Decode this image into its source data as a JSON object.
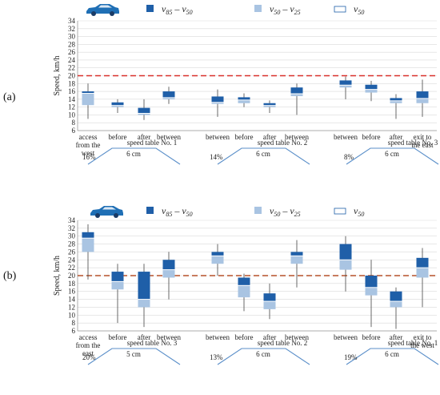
{
  "chart_data": [
    {
      "type": "box",
      "panel_label": "(a)",
      "ylabel": "Speed, km/h",
      "ylim": [
        6,
        34
      ],
      "yticks": [
        6,
        8,
        10,
        12,
        14,
        16,
        18,
        20,
        22,
        24,
        26,
        28,
        30,
        32,
        34
      ],
      "reference_line": 20,
      "legend": [
        {
          "sym": "v",
          "sub_a": "85",
          "sub_b": "50"
        },
        {
          "sym": "v",
          "sub_a": "50",
          "sub_b": "25"
        },
        {
          "sym": "v",
          "sub_a": "50",
          "sub_b": ""
        }
      ],
      "colors": {
        "upper": "#1f5fa8",
        "lower": "#a9c4e2",
        "whisker": "#444444",
        "refline": "#d9302a",
        "car": "#1f6fb5",
        "ramp": "#5b8fc9"
      },
      "categories": [
        "access\nfrom the\nwest",
        "before",
        "after",
        "between",
        "",
        "between",
        "before",
        "after",
        "between",
        "",
        "between",
        "before",
        "after",
        "exit to\nthe east"
      ],
      "boxes": [
        {
          "min": 9.0,
          "q1": 12.5,
          "median": 15.5,
          "q3": 16.0,
          "max": 18.0
        },
        {
          "min": 10.5,
          "q1": 12.0,
          "median": 12.4,
          "q3": 13.2,
          "max": 14.0
        },
        {
          "min": 8.7,
          "q1": 10.0,
          "median": 10.4,
          "q3": 11.8,
          "max": 14.0
        },
        {
          "min": 12.8,
          "q1": 14.0,
          "median": 14.4,
          "q3": 16.0,
          "max": 17.2
        },
        null,
        {
          "min": 9.5,
          "q1": 12.8,
          "median": 13.2,
          "q3": 14.7,
          "max": 16.5
        },
        {
          "min": 12.0,
          "q1": 13.0,
          "median": 13.8,
          "q3": 14.5,
          "max": 15.5
        },
        {
          "min": 10.5,
          "q1": 12.0,
          "median": 12.4,
          "q3": 13.0,
          "max": 13.7
        },
        {
          "min": 10.0,
          "q1": 14.8,
          "median": 15.4,
          "q3": 17.0,
          "max": 18.0
        },
        null,
        {
          "min": 14.0,
          "q1": 17.0,
          "median": 17.6,
          "q3": 18.8,
          "max": 19.8
        },
        {
          "min": 13.5,
          "q1": 15.7,
          "median": 16.5,
          "q3": 17.7,
          "max": 18.7
        },
        {
          "min": 9.0,
          "q1": 13.0,
          "median": 13.6,
          "q3": 14.3,
          "max": 15.3
        },
        {
          "min": 9.5,
          "q1": 13.0,
          "median": 14.2,
          "q3": 16.0,
          "max": 19.0
        }
      ],
      "speed_tables": [
        {
          "label": "speed table No.  1",
          "percent": "16%",
          "width": "6 cm"
        },
        {
          "label": "speed table No.  2",
          "percent": "14%",
          "width": "6 cm"
        },
        {
          "label": "speed table No. 3",
          "percent": "8%",
          "width": "6 cm"
        }
      ]
    },
    {
      "type": "box",
      "panel_label": "(b)",
      "ylabel": "Speed, km/h",
      "ylim": [
        6,
        34
      ],
      "yticks": [
        6,
        8,
        10,
        12,
        14,
        16,
        18,
        20,
        22,
        24,
        26,
        28,
        30,
        32,
        34
      ],
      "reference_line": 20,
      "legend": [
        {
          "sym": "v",
          "sub_a": "85",
          "sub_b": "50"
        },
        {
          "sym": "v",
          "sub_a": "50",
          "sub_b": "25"
        },
        {
          "sym": "v",
          "sub_a": "50",
          "sub_b": ""
        }
      ],
      "colors": {
        "upper": "#1f5fa8",
        "lower": "#a9c4e2",
        "whisker": "#444444",
        "refline": "#b5512a",
        "car": "#1f6fb5",
        "ramp": "#5b8fc9"
      },
      "categories": [
        "access\nfrom the\neast",
        "before",
        "after",
        "between",
        "",
        "between",
        "before",
        "after",
        "between",
        "",
        "between",
        "before",
        "after",
        "exit to\nthe west"
      ],
      "boxes": [
        {
          "min": 19.0,
          "q1": 26.0,
          "median": 29.5,
          "q3": 31.0,
          "max": 33.0
        },
        {
          "min": 8.0,
          "q1": 16.5,
          "median": 18.5,
          "q3": 21.0,
          "max": 23.0
        },
        {
          "min": 7.0,
          "q1": 12.0,
          "median": 14.0,
          "q3": 21.0,
          "max": 23.0
        },
        {
          "min": 14.0,
          "q1": 19.5,
          "median": 21.5,
          "q3": 24.0,
          "max": 26.0
        },
        null,
        {
          "min": 20.0,
          "q1": 23.0,
          "median": 25.0,
          "q3": 26.0,
          "max": 28.0
        },
        {
          "min": 11.0,
          "q1": 14.5,
          "median": 17.5,
          "q3": 19.5,
          "max": 20.5
        },
        {
          "min": 9.0,
          "q1": 11.5,
          "median": 13.5,
          "q3": 15.5,
          "max": 18.0
        },
        {
          "min": 17.0,
          "q1": 23.0,
          "median": 25.0,
          "q3": 26.0,
          "max": 29.0
        },
        null,
        {
          "min": 16.0,
          "q1": 21.5,
          "median": 24.0,
          "q3": 28.0,
          "max": 30.0
        },
        {
          "min": 7.0,
          "q1": 15.0,
          "median": 17.0,
          "q3": 20.0,
          "max": 24.0
        },
        {
          "min": 6.5,
          "q1": 12.0,
          "median": 13.5,
          "q3": 16.0,
          "max": 17.0
        },
        {
          "min": 12.0,
          "q1": 19.5,
          "median": 22.0,
          "q3": 24.5,
          "max": 27.0
        }
      ],
      "speed_tables": [
        {
          "label": "speed table No. 3",
          "percent": "20%",
          "width": "5 cm"
        },
        {
          "label": "speed table No. 2",
          "percent": "13%",
          "width": "6 cm"
        },
        {
          "label": "speed table No. 1",
          "percent": "19%",
          "width": "6 cm"
        }
      ]
    }
  ]
}
